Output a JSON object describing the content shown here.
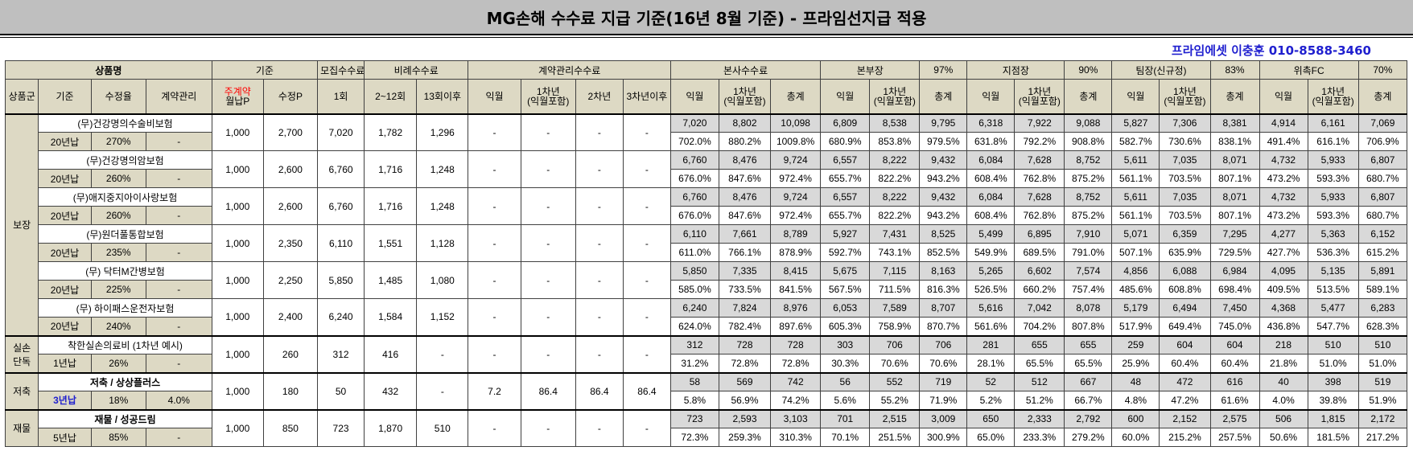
{
  "title": "MG손해 수수료 지급 기준(16년 8월 기준) - 프라임선지급 적용",
  "contact": "프라임에셋 이충훈 010-8588-3460",
  "header1": {
    "product": "상품명",
    "basis": "기준",
    "recruit": "모집수수료",
    "proportional": "비례수수료",
    "contract_mgmt": "계약관리수수료",
    "hq": "본사수수료",
    "division": "본부장",
    "division_pct": "97%",
    "branch": "지점장",
    "branch_pct": "90%",
    "team": "팀장(신규정)",
    "team_pct": "83%",
    "fc": "위촉FC",
    "fc_pct": "70%"
  },
  "header2": {
    "group": "상품군",
    "basis": "기준",
    "rate": "수정율",
    "mgmt": "계약관리",
    "premium_top": "주계약",
    "premium_bottom": "월납P",
    "adjP": "수정P",
    "first": "1회",
    "m2_12": "2~12회",
    "m13": "13회이후",
    "next_month": "익월",
    "y1_top": "1차년",
    "y1_bottom": "(익월포함)",
    "y2": "2차년",
    "y3": "3차년이후",
    "total": "총계"
  },
  "groups": [
    {
      "label": "보장",
      "rows": 6
    },
    {
      "label": "실손\n단독",
      "rows": 1
    },
    {
      "label": "저축",
      "rows": 1
    },
    {
      "label": "재물",
      "rows": 1
    }
  ],
  "products": [
    {
      "name": "(무)건강명의수술비보험",
      "term": "20년납",
      "rate": "270%",
      "mgmt": "-",
      "premium": "1,000",
      "adjP": "2,700",
      "first": "7,020",
      "m2_12": "1,782",
      "m13": "1,296",
      "cm": [
        "-",
        "-",
        "-",
        "-"
      ],
      "amounts": [
        "7,020",
        "8,802",
        "10,098",
        "6,809",
        "8,538",
        "9,795",
        "6,318",
        "7,922",
        "9,088",
        "5,827",
        "7,306",
        "8,381",
        "4,914",
        "6,161",
        "7,069"
      ],
      "pcts": [
        "702.0%",
        "880.2%",
        "1009.8%",
        "680.9%",
        "853.8%",
        "979.5%",
        "631.8%",
        "792.2%",
        "908.8%",
        "582.7%",
        "730.6%",
        "838.1%",
        "491.4%",
        "616.1%",
        "706.9%"
      ]
    },
    {
      "name": "(무)건강명의암보험",
      "term": "20년납",
      "rate": "260%",
      "mgmt": "-",
      "premium": "1,000",
      "adjP": "2,600",
      "first": "6,760",
      "m2_12": "1,716",
      "m13": "1,248",
      "cm": [
        "-",
        "-",
        "-",
        "-"
      ],
      "amounts": [
        "6,760",
        "8,476",
        "9,724",
        "6,557",
        "8,222",
        "9,432",
        "6,084",
        "7,628",
        "8,752",
        "5,611",
        "7,035",
        "8,071",
        "4,732",
        "5,933",
        "6,807"
      ],
      "pcts": [
        "676.0%",
        "847.6%",
        "972.4%",
        "655.7%",
        "822.2%",
        "943.2%",
        "608.4%",
        "762.8%",
        "875.2%",
        "561.1%",
        "703.5%",
        "807.1%",
        "473.2%",
        "593.3%",
        "680.7%"
      ]
    },
    {
      "name": "(무)애지중지아이사랑보험",
      "term": "20년납",
      "rate": "260%",
      "mgmt": "-",
      "premium": "1,000",
      "adjP": "2,600",
      "first": "6,760",
      "m2_12": "1,716",
      "m13": "1,248",
      "cm": [
        "-",
        "-",
        "-",
        "-"
      ],
      "amounts": [
        "6,760",
        "8,476",
        "9,724",
        "6,557",
        "8,222",
        "9,432",
        "6,084",
        "7,628",
        "8,752",
        "5,611",
        "7,035",
        "8,071",
        "4,732",
        "5,933",
        "6,807"
      ],
      "pcts": [
        "676.0%",
        "847.6%",
        "972.4%",
        "655.7%",
        "822.2%",
        "943.2%",
        "608.4%",
        "762.8%",
        "875.2%",
        "561.1%",
        "703.5%",
        "807.1%",
        "473.2%",
        "593.3%",
        "680.7%"
      ]
    },
    {
      "name": "(무)원더풀통합보험",
      "term": "20년납",
      "rate": "235%",
      "mgmt": "-",
      "premium": "1,000",
      "adjP": "2,350",
      "first": "6,110",
      "m2_12": "1,551",
      "m13": "1,128",
      "cm": [
        "-",
        "-",
        "-",
        "-"
      ],
      "amounts": [
        "6,110",
        "7,661",
        "8,789",
        "5,927",
        "7,431",
        "8,525",
        "5,499",
        "6,895",
        "7,910",
        "5,071",
        "6,359",
        "7,295",
        "4,277",
        "5,363",
        "6,152"
      ],
      "pcts": [
        "611.0%",
        "766.1%",
        "878.9%",
        "592.7%",
        "743.1%",
        "852.5%",
        "549.9%",
        "689.5%",
        "791.0%",
        "507.1%",
        "635.9%",
        "729.5%",
        "427.7%",
        "536.3%",
        "615.2%"
      ]
    },
    {
      "name": "(무) 닥터M간병보험",
      "term": "20년납",
      "rate": "225%",
      "mgmt": "-",
      "premium": "1,000",
      "adjP": "2,250",
      "first": "5,850",
      "m2_12": "1,485",
      "m13": "1,080",
      "cm": [
        "-",
        "-",
        "-",
        "-"
      ],
      "amounts": [
        "5,850",
        "7,335",
        "8,415",
        "5,675",
        "7,115",
        "8,163",
        "5,265",
        "6,602",
        "7,574",
        "4,856",
        "6,088",
        "6,984",
        "4,095",
        "5,135",
        "5,891"
      ],
      "pcts": [
        "585.0%",
        "733.5%",
        "841.5%",
        "567.5%",
        "711.5%",
        "816.3%",
        "526.5%",
        "660.2%",
        "757.4%",
        "485.6%",
        "608.8%",
        "698.4%",
        "409.5%",
        "513.5%",
        "589.1%"
      ]
    },
    {
      "name": "(무) 하이패스운전자보험",
      "term": "20년납",
      "rate": "240%",
      "mgmt": "-",
      "premium": "1,000",
      "adjP": "2,400",
      "first": "6,240",
      "m2_12": "1,584",
      "m13": "1,152",
      "cm": [
        "-",
        "-",
        "-",
        "-"
      ],
      "amounts": [
        "6,240",
        "7,824",
        "8,976",
        "6,053",
        "7,589",
        "8,707",
        "5,616",
        "7,042",
        "8,078",
        "5,179",
        "6,494",
        "7,450",
        "4,368",
        "5,477",
        "6,283"
      ],
      "pcts": [
        "624.0%",
        "782.4%",
        "897.6%",
        "605.3%",
        "758.9%",
        "870.7%",
        "561.6%",
        "704.2%",
        "807.8%",
        "517.9%",
        "649.4%",
        "745.0%",
        "436.8%",
        "547.7%",
        "628.3%"
      ]
    },
    {
      "name": "착한실손의료비 (1차년 예시)",
      "term": "1년납",
      "rate": "26%",
      "mgmt": "-",
      "premium": "1,000",
      "adjP": "260",
      "first": "312",
      "m2_12": "416",
      "m13": "-",
      "cm": [
        "-",
        "-",
        "-",
        "-"
      ],
      "amounts": [
        "312",
        "728",
        "728",
        "303",
        "706",
        "706",
        "281",
        "655",
        "655",
        "259",
        "604",
        "604",
        "218",
        "510",
        "510"
      ],
      "pcts": [
        "31.2%",
        "72.8%",
        "72.8%",
        "30.3%",
        "70.6%",
        "70.6%",
        "28.1%",
        "65.5%",
        "65.5%",
        "25.9%",
        "60.4%",
        "60.4%",
        "21.8%",
        "51.0%",
        "51.0%"
      ]
    },
    {
      "name": "저축 / 상상플러스",
      "term": "3년납",
      "rate": "18%",
      "mgmt": "4.0%",
      "premium": "1,000",
      "adjP": "180",
      "first": "50",
      "m2_12": "432",
      "m13": "-",
      "cm": [
        "7.2",
        "86.4",
        "86.4",
        "86.4"
      ],
      "amounts": [
        "58",
        "569",
        "742",
        "56",
        "552",
        "719",
        "52",
        "512",
        "667",
        "48",
        "472",
        "616",
        "40",
        "398",
        "519"
      ],
      "pcts": [
        "5.8%",
        "56.9%",
        "74.2%",
        "5.6%",
        "55.2%",
        "71.9%",
        "5.2%",
        "51.2%",
        "66.7%",
        "4.8%",
        "47.2%",
        "61.6%",
        "4.0%",
        "39.8%",
        "51.9%"
      ]
    },
    {
      "name": "재물 / 성공드림",
      "term": "5년납",
      "rate": "85%",
      "mgmt": "-",
      "premium": "1,000",
      "adjP": "850",
      "first": "723",
      "m2_12": "1,870",
      "m13": "510",
      "cm": [
        "-",
        "-",
        "-",
        "-"
      ],
      "amounts": [
        "723",
        "2,593",
        "3,103",
        "701",
        "2,515",
        "3,009",
        "650",
        "2,333",
        "2,792",
        "600",
        "2,152",
        "2,575",
        "506",
        "1,815",
        "2,172"
      ],
      "pcts": [
        "72.3%",
        "259.3%",
        "310.3%",
        "70.1%",
        "251.5%",
        "300.9%",
        "65.0%",
        "233.3%",
        "279.2%",
        "60.0%",
        "215.2%",
        "257.5%",
        "50.6%",
        "181.5%",
        "217.2%"
      ]
    }
  ],
  "colors": {
    "title_bg": "#bfbfbf",
    "header_bg": "#ddd9c4",
    "value_bg": "#d9d9d9",
    "contact": "#1f1fcf",
    "alert": "#ff0000"
  }
}
